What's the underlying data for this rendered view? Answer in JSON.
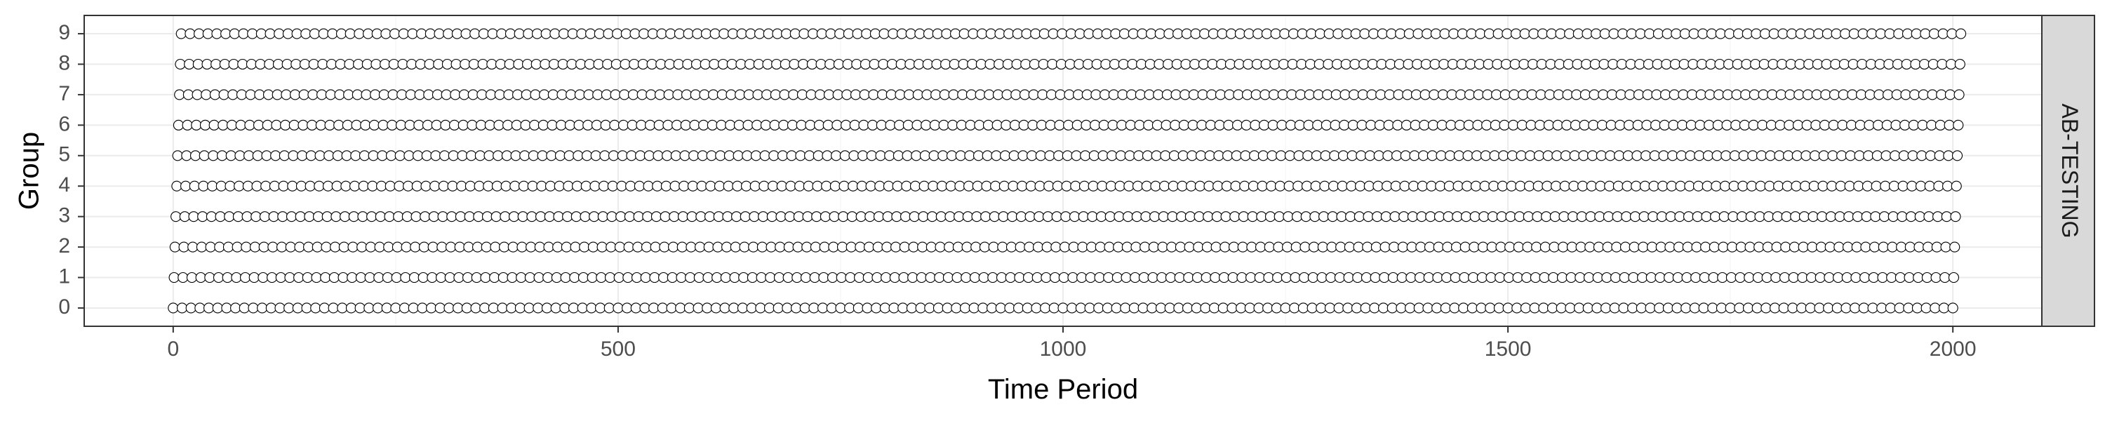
{
  "chart_data": {
    "type": "scatter",
    "xlabel": "Time Period",
    "ylabel": "Group",
    "facet_label": "AB-TESTING",
    "xlim": [
      -100,
      2100
    ],
    "ylim": [
      -0.6,
      9.6
    ],
    "x_ticks": [
      0,
      500,
      1000,
      1500,
      2000
    ],
    "x_tick_labels": [
      "0",
      "500",
      "1000",
      "1500",
      "2000"
    ],
    "y_ticks": [
      0,
      1,
      2,
      3,
      4,
      5,
      6,
      7,
      8,
      9
    ],
    "y_tick_labels": [
      "0",
      "1",
      "2",
      "3",
      "4",
      "5",
      "6",
      "7",
      "8",
      "9"
    ],
    "grid": true,
    "marker": "open-circle",
    "point_step": 10,
    "series": [
      {
        "group": 0,
        "x_start": 0,
        "x_end": 2000
      },
      {
        "group": 1,
        "x_start": 1,
        "x_end": 2001
      },
      {
        "group": 2,
        "x_start": 2,
        "x_end": 2002
      },
      {
        "group": 3,
        "x_start": 3,
        "x_end": 2003
      },
      {
        "group": 4,
        "x_start": 4,
        "x_end": 2004
      },
      {
        "group": 5,
        "x_start": 5,
        "x_end": 2005
      },
      {
        "group": 6,
        "x_start": 6,
        "x_end": 2006
      },
      {
        "group": 7,
        "x_start": 7,
        "x_end": 2007
      },
      {
        "group": 8,
        "x_start": 8,
        "x_end": 2008
      },
      {
        "group": 9,
        "x_start": 9,
        "x_end": 2009
      }
    ]
  },
  "colors": {
    "panel_border": "#333333",
    "grid_major": "#ebebeb",
    "grid_minor": "#f5f5f5",
    "point_stroke": "#000000",
    "point_fill": "#ffffff",
    "strip_fill": "#d9d9d9",
    "tick_text": "#4d4d4d",
    "axis_title": "#000000"
  }
}
